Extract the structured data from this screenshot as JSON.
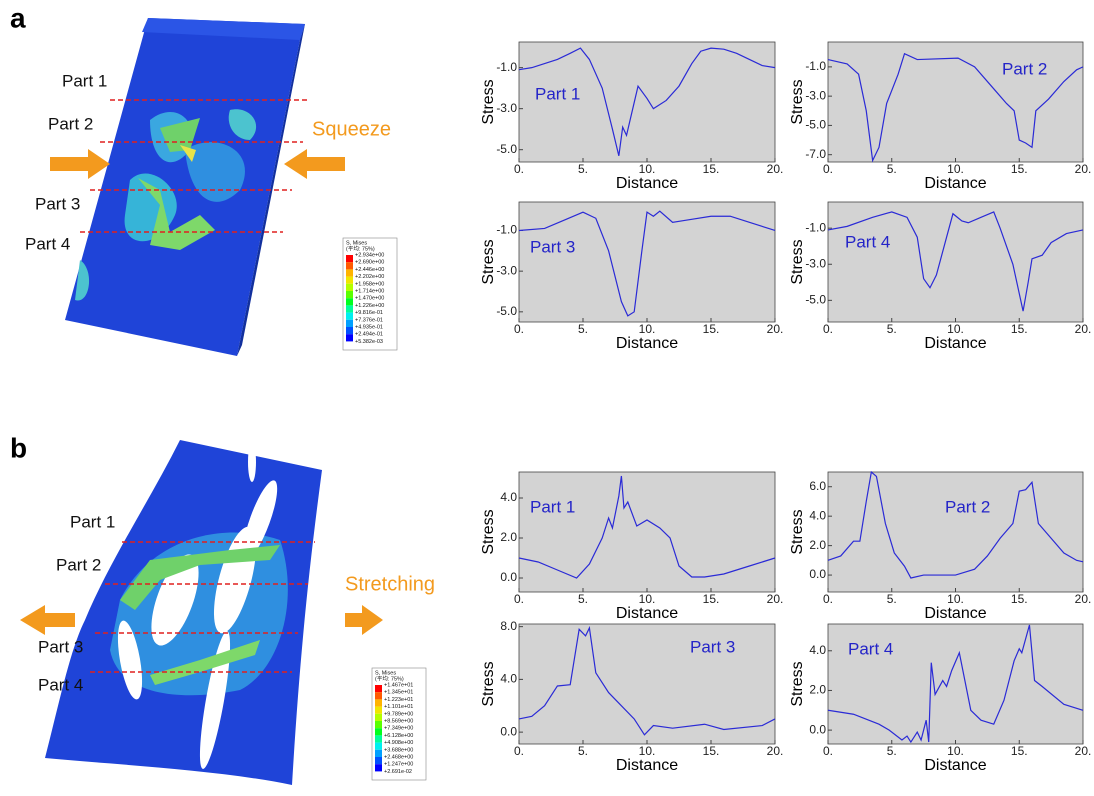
{
  "chart_data": [
    {
      "type": "line",
      "annotation": "Part 1",
      "x_label": "Distance",
      "y_label": "Stress",
      "color": "#2a2ad6",
      "background": "#d3d3d3",
      "x": [
        0,
        1,
        2,
        3,
        4,
        4.8,
        5.5,
        6.5,
        7.3,
        7.8,
        8.1,
        8.4,
        9.3,
        10,
        10.5,
        11.5,
        12.5,
        13.5,
        14.2,
        15,
        16,
        17,
        18,
        19,
        20
      ],
      "values": [
        -1.1,
        -1.0,
        -0.8,
        -0.6,
        -0.3,
        -0.05,
        -0.6,
        -2.0,
        -4.0,
        -5.3,
        -3.9,
        -4.3,
        -1.9,
        -2.5,
        -3.0,
        -2.6,
        -1.9,
        -0.8,
        -0.2,
        -0.05,
        -0.1,
        -0.3,
        -0.6,
        -0.9,
        -1.0
      ],
      "xlim": [
        0,
        20
      ],
      "xticks": [
        {
          "value": 0,
          "label": "0."
        },
        {
          "value": 5,
          "label": "5."
        },
        {
          "value": 10,
          "label": "10."
        },
        {
          "value": 15,
          "label": "15."
        },
        {
          "value": 20,
          "label": "20."
        }
      ],
      "ylim": [
        -5.6,
        0.25
      ],
      "yticks": [
        {
          "value": -1,
          "label": "-1.0"
        },
        {
          "value": -3,
          "label": "-3.0"
        },
        {
          "value": -5,
          "label": "-5.0"
        }
      ]
    },
    {
      "type": "line",
      "annotation": "Part 2",
      "x_label": "Distance",
      "y_label": "Stress",
      "color": "#2a2ad6",
      "background": "#d3d3d3",
      "x": [
        0,
        1.5,
        2.4,
        3,
        3.5,
        4,
        4.6,
        5.5,
        6,
        7,
        10.2,
        11.5,
        13,
        14,
        14.6,
        15,
        15.5,
        16,
        16.3,
        17.3,
        18.5,
        19.5,
        20
      ],
      "values": [
        -0.5,
        -0.8,
        -1.5,
        -4,
        -7.4,
        -6.5,
        -3.5,
        -1.5,
        -0.1,
        -0.5,
        -0.4,
        -1.0,
        -2.5,
        -3.5,
        -4,
        -6,
        -6.2,
        -6.5,
        -4,
        -3.2,
        -2,
        -1.2,
        -1
      ],
      "xlim": [
        0,
        20
      ],
      "xticks": [
        {
          "value": 0,
          "label": "0."
        },
        {
          "value": 5,
          "label": "5."
        },
        {
          "value": 10,
          "label": "10."
        },
        {
          "value": 15,
          "label": "15."
        },
        {
          "value": 20,
          "label": "20."
        }
      ],
      "ylim": [
        -7.5,
        0.7
      ],
      "yticks": [
        {
          "value": -1,
          "label": "-1.0"
        },
        {
          "value": -3,
          "label": "-3.0"
        },
        {
          "value": -5,
          "label": "-5.0"
        },
        {
          "value": -7,
          "label": "-7.0"
        }
      ]
    },
    {
      "type": "line",
      "annotation": "Part 3",
      "x_label": "Distance",
      "y_label": "Stress",
      "color": "#2a2ad6",
      "background": "#d3d3d3",
      "x": [
        0,
        2,
        3.5,
        5,
        6,
        7,
        8,
        8.5,
        9,
        9.6,
        10,
        10.5,
        11,
        12,
        13,
        15,
        16.5,
        18,
        20
      ],
      "values": [
        -1,
        -0.9,
        -0.5,
        -0.1,
        -0.4,
        -2,
        -4.5,
        -5.2,
        -5,
        -2,
        -0.1,
        -0.3,
        -0.05,
        -0.6,
        -0.5,
        -0.3,
        -0.3,
        -0.6,
        -1
      ],
      "xlim": [
        0,
        20
      ],
      "xticks": [
        {
          "value": 0,
          "label": "0."
        },
        {
          "value": 5,
          "label": "5."
        },
        {
          "value": 10,
          "label": "10."
        },
        {
          "value": 15,
          "label": "15."
        },
        {
          "value": 20,
          "label": "20."
        }
      ],
      "ylim": [
        -5.5,
        0.4
      ],
      "yticks": [
        {
          "value": -1,
          "label": "-1.0"
        },
        {
          "value": -3,
          "label": "-3.0"
        },
        {
          "value": -5,
          "label": "-5.0"
        }
      ]
    },
    {
      "type": "line",
      "annotation": "Part 4",
      "x_label": "Distance",
      "y_label": "Stress",
      "color": "#2a2ad6",
      "background": "#d3d3d3",
      "x": [
        0,
        1.5,
        3.5,
        5,
        6.2,
        7,
        7.5,
        8,
        8.5,
        9.3,
        9.8,
        10.5,
        11,
        12,
        13,
        13.5,
        14.5,
        15.3,
        15.7,
        16,
        16.8,
        17.5,
        18.7,
        20
      ],
      "values": [
        -1.1,
        -0.9,
        -0.4,
        -0.1,
        -0.4,
        -1.5,
        -3.8,
        -4.3,
        -3.6,
        -1.5,
        -0.2,
        -0.6,
        -0.7,
        -0.4,
        -0.1,
        -1,
        -3,
        -5.6,
        -4,
        -2.7,
        -2.5,
        -1.8,
        -1.3,
        -1.1
      ],
      "xlim": [
        0,
        20
      ],
      "xticks": [
        {
          "value": 0,
          "label": "0."
        },
        {
          "value": 5,
          "label": "5."
        },
        {
          "value": 10,
          "label": "10."
        },
        {
          "value": 15,
          "label": "15."
        },
        {
          "value": 20,
          "label": "20."
        }
      ],
      "ylim": [
        -6.2,
        0.45
      ],
      "yticks": [
        {
          "value": -1,
          "label": "-1.0"
        },
        {
          "value": -3,
          "label": "-3.0"
        },
        {
          "value": -5,
          "label": "-5.0"
        }
      ]
    },
    {
      "type": "line",
      "annotation": "Part 1",
      "x_label": "Distance",
      "y_label": "Stress",
      "color": "#2a2ad6",
      "background": "#d3d3d3",
      "x": [
        0,
        1.5,
        3,
        4.5,
        5.5,
        6.5,
        7,
        7.3,
        7.8,
        8,
        8.2,
        8.5,
        9.2,
        10,
        11,
        11.8,
        12.5,
        13.5,
        14.5,
        16,
        18,
        20
      ],
      "values": [
        1,
        0.8,
        0.4,
        0,
        0.7,
        2,
        3,
        2.5,
        4.1,
        5.1,
        3.5,
        3.8,
        2.6,
        2.9,
        2.5,
        2,
        0.6,
        0.05,
        0.05,
        0.2,
        0.6,
        1
      ],
      "xlim": [
        0,
        20
      ],
      "xticks": [
        {
          "value": 0,
          "label": "0."
        },
        {
          "value": 5,
          "label": "5."
        },
        {
          "value": 10,
          "label": "10."
        },
        {
          "value": 15,
          "label": "15."
        },
        {
          "value": 20,
          "label": "20."
        }
      ],
      "ylim": [
        -0.7,
        5.3
      ],
      "yticks": [
        {
          "value": 0,
          "label": "0.0"
        },
        {
          "value": 2,
          "label": "2.0"
        },
        {
          "value": 4,
          "label": "4.0"
        }
      ]
    },
    {
      "type": "line",
      "annotation": "Part 2",
      "x_label": "Distance",
      "y_label": "Stress",
      "color": "#2a2ad6",
      "background": "#d3d3d3",
      "x": [
        0,
        1,
        2,
        2.5,
        3,
        3.4,
        3.8,
        4.5,
        5.2,
        6,
        6.5,
        7.5,
        10,
        11.5,
        12.5,
        13.5,
        14.5,
        15,
        15.5,
        16,
        16.5,
        17.5,
        18.5,
        19.5,
        20
      ],
      "values": [
        1,
        1.3,
        2.3,
        2.3,
        5,
        7,
        6.7,
        3.5,
        1.5,
        0.6,
        -0.2,
        0,
        0,
        0.4,
        1.3,
        2.5,
        3.5,
        5.7,
        5.8,
        6.3,
        3.5,
        2.5,
        1.5,
        1,
        0.9
      ],
      "xlim": [
        0,
        20
      ],
      "xticks": [
        {
          "value": 0,
          "label": "0."
        },
        {
          "value": 5,
          "label": "5."
        },
        {
          "value": 10,
          "label": "10."
        },
        {
          "value": 15,
          "label": "15."
        },
        {
          "value": 20,
          "label": "20."
        }
      ],
      "ylim": [
        -1.15,
        7.0
      ],
      "yticks": [
        {
          "value": 0,
          "label": "0.0"
        },
        {
          "value": 2,
          "label": "2.0"
        },
        {
          "value": 4,
          "label": "4.0"
        },
        {
          "value": 6,
          "label": "6.0"
        }
      ]
    },
    {
      "type": "line",
      "annotation": "Part 3",
      "x_label": "Distance",
      "y_label": "Stress",
      "color": "#2a2ad6",
      "background": "#d3d3d3",
      "x": [
        0,
        1,
        2,
        3,
        4,
        4.7,
        5.2,
        5.5,
        6,
        7,
        9,
        9.8,
        10.5,
        12,
        14.5,
        16,
        19,
        20
      ],
      "values": [
        1,
        1.2,
        2,
        3.5,
        3.6,
        7.8,
        7.3,
        7.9,
        4.5,
        3,
        1,
        -0.2,
        0.5,
        0.3,
        0.6,
        0.2,
        0.5,
        1
      ],
      "xlim": [
        0,
        20
      ],
      "xticks": [
        {
          "value": 0,
          "label": "0."
        },
        {
          "value": 5,
          "label": "5."
        },
        {
          "value": 10,
          "label": "10."
        },
        {
          "value": 15,
          "label": "15."
        },
        {
          "value": 20,
          "label": "20."
        }
      ],
      "ylim": [
        -0.9,
        8.2
      ],
      "yticks": [
        {
          "value": 0,
          "label": "0.0"
        },
        {
          "value": 4,
          "label": "4.0"
        },
        {
          "value": 8,
          "label": "8.0"
        }
      ]
    },
    {
      "type": "line",
      "annotation": "Part 4",
      "x_label": "Distance",
      "y_label": "Stress",
      "color": "#2a2ad6",
      "background": "#d3d3d3",
      "x": [
        0,
        2,
        4,
        4.8,
        5.8,
        6.2,
        6.5,
        7,
        7.3,
        7.7,
        7.9,
        8.1,
        8.4,
        9,
        9.3,
        9.7,
        10.3,
        11.2,
        12,
        13,
        13.8,
        14.6,
        15,
        15.2,
        15.8,
        16.2,
        16.8,
        18.5,
        20
      ],
      "values": [
        1,
        0.8,
        0.3,
        0,
        -0.5,
        -0.3,
        -0.6,
        -0.1,
        -0.5,
        0.5,
        -0.6,
        3.4,
        1.8,
        2.5,
        2.2,
        3,
        3.9,
        1,
        0.5,
        0.3,
        1.5,
        3.5,
        4.1,
        3.9,
        5.3,
        2.5,
        2.2,
        1.3,
        1
      ],
      "xlim": [
        0,
        20
      ],
      "xticks": [
        {
          "value": 0,
          "label": "0."
        },
        {
          "value": 5,
          "label": "5."
        },
        {
          "value": 10,
          "label": "10."
        },
        {
          "value": 15,
          "label": "15."
        },
        {
          "value": 20,
          "label": "20."
        }
      ],
      "ylim": [
        -0.7,
        5.35
      ],
      "yticks": [
        {
          "value": 0,
          "label": "0.0"
        },
        {
          "value": 2,
          "label": "2.0"
        },
        {
          "value": 4,
          "label": "4.0"
        }
      ]
    }
  ],
  "figure": {
    "panels": [
      {
        "label": "a",
        "parts": [
          "Part 1",
          "Part 2",
          "Part 3",
          "Part 4"
        ],
        "load": "Squeeze",
        "legend": {
          "title": "S, Mises",
          "subtitle": "(平均: 75%)",
          "values": [
            "+2.934e+00",
            "+2.690e+00",
            "+2.446e+00",
            "+2.202e+00",
            "+1.958e+00",
            "+1.714e+00",
            "+1.470e+00",
            "+1.226e+00",
            "+9.816e-01",
            "+7.376e-01",
            "+4.935e-01",
            "+2.494e-01",
            "+5.382e-03"
          ]
        }
      },
      {
        "label": "b",
        "parts": [
          "Part 1",
          "Part 2",
          "Part 3",
          "Part 4"
        ],
        "load": "Stretching",
        "legend": {
          "title": "S, Mises",
          "subtitle": "(平均: 75%)",
          "values": [
            "+1.467e+01",
            "+1.345e+01",
            "+1.223e+01",
            "+1.101e+01",
            "+9.789e+00",
            "+8.569e+00",
            "+7.349e+00",
            "+6.128e+00",
            "+4.908e+00",
            "+3.688e+00",
            "+2.468e+00",
            "+1.247e+00",
            "+2.691e-02"
          ]
        }
      }
    ]
  }
}
